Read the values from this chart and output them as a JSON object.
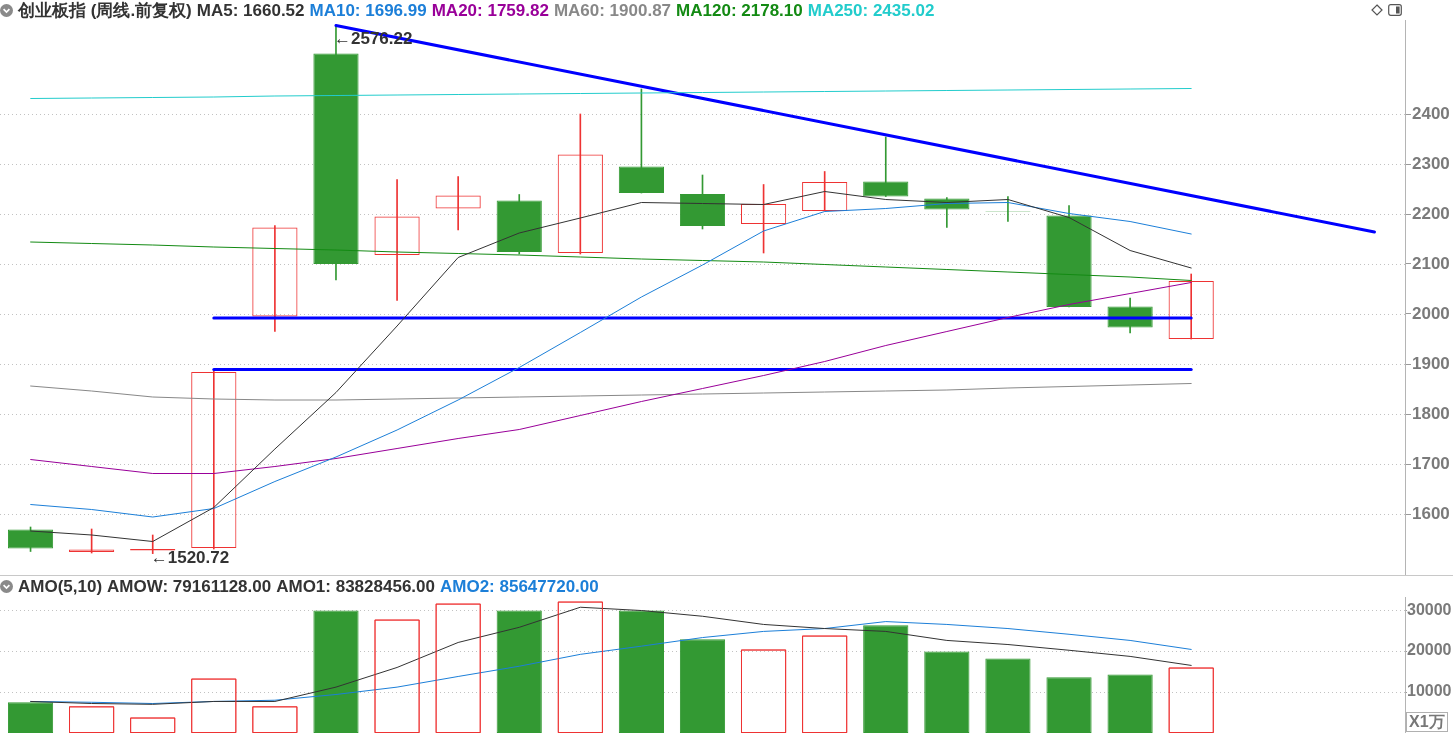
{
  "chart_data": [
    {
      "type": "candlestick",
      "title": "创业板指 (周线.前复权)",
      "categories": [
        null,
        null,
        null,
        null,
        null,
        null,
        null,
        null,
        null,
        null,
        null,
        null,
        null,
        null,
        null,
        null,
        null,
        null,
        null,
        null,
        null,
        null,
        null
      ],
      "ohlc": [
        [
          1569,
          1574,
          1525,
          1531
        ],
        [
          1524,
          1570,
          1522,
          1529
        ],
        [
          1527,
          1558,
          1520.72,
          1530
        ],
        [
          1532,
          1886,
          1530,
          1884
        ],
        [
          1995,
          2177,
          1965,
          2173
        ],
        [
          2521,
          2576.22,
          2068,
          2100
        ],
        [
          2118,
          2269,
          2027,
          2195
        ],
        [
          2211,
          2275,
          2168,
          2237
        ],
        [
          2227,
          2239,
          2120,
          2124
        ],
        [
          2122,
          2400,
          2120,
          2319
        ],
        [
          2295,
          2450,
          2242,
          2242
        ],
        [
          2240,
          2278,
          2170,
          2176
        ],
        [
          2180,
          2259,
          2122,
          2220
        ],
        [
          2206,
          2285,
          2206,
          2264
        ],
        [
          2265,
          2354,
          2235,
          2235
        ],
        [
          2231,
          2233,
          2173,
          2209
        ],
        [
          2205,
          2235,
          2185,
          2204
        ],
        [
          2197,
          2217,
          2014,
          2014
        ],
        [
          2015,
          2032,
          1962,
          1973
        ],
        [
          1950,
          2080,
          1950,
          2066
        ],
        null,
        null,
        null
      ],
      "colors": [
        "#339933",
        "#ee3333",
        "#ee3333",
        "#ee3333",
        "#ee3333",
        "#339933",
        "#ee3333",
        "#ee3333",
        "#339933",
        "#ee3333",
        "#339933",
        "#339933",
        "#ee3333",
        "#ee3333",
        "#339933",
        "#339933",
        "#339933",
        "#339933",
        "#339933",
        "#ee3333",
        null,
        null,
        null
      ],
      "series": [
        {
          "name": "MA5: 1660.52",
          "type": "line",
          "color": "#333333",
          "values": [
            1566,
            1558,
            1545,
            1613,
            1730,
            1843,
            1976,
            2113,
            2162,
            2192,
            2223,
            2221,
            2219,
            2245,
            2229,
            2223,
            2229,
            2193,
            2127,
            2092,
            null,
            null,
            null
          ]
        },
        {
          "name": "MA10: 1696.99",
          "type": "line",
          "color": "#1c7fd8",
          "values": [
            1619,
            1609,
            1594,
            1611,
            1665,
            1714,
            1768,
            1828,
            1893,
            1963,
            2034,
            2098,
            2166,
            2205,
            2211,
            2221,
            2223,
            2201,
            2185,
            2160,
            null,
            null,
            null
          ]
        },
        {
          "name": "MA20: 1759.82",
          "type": "line",
          "color": "#990099",
          "values": [
            1709,
            1695,
            1681,
            1681,
            1695,
            1711,
            1731,
            1751,
            1769,
            1797,
            1825,
            1851,
            1877,
            1905,
            1937,
            1965,
            1993,
            2019,
            2041,
            2063,
            null,
            null,
            null
          ]
        },
        {
          "name": "MA60: 1900.87",
          "type": "line",
          "color": "#888888",
          "values": [
            1856,
            1846,
            1834,
            1830,
            1828,
            1828,
            1830,
            1832,
            1834,
            1836,
            1838,
            1840,
            1842,
            1844,
            1846,
            1848,
            1852,
            1855,
            1858,
            1861,
            null,
            null,
            null
          ]
        },
        {
          "name": "MA120: 2178.10",
          "type": "line",
          "color": "#138a13",
          "values": [
            2144,
            2141,
            2138,
            2134,
            2131,
            2128,
            2124,
            2121,
            2118,
            2114,
            2110,
            2107,
            2104,
            2099,
            2094,
            2089,
            2084,
            2079,
            2074,
            2067,
            null,
            null,
            null
          ]
        },
        {
          "name": "MA250: 2435.02",
          "type": "line",
          "color": "#22cccc",
          "values": [
            2431,
            2432,
            2433,
            2434,
            2436,
            2437,
            2438,
            2439,
            2440,
            2441,
            2442,
            2443,
            2444,
            2445,
            2446,
            2447,
            2448,
            2449,
            2450,
            2451,
            null,
            null,
            null
          ]
        },
        {
          "type": "line",
          "color": "#0000ff",
          "values": [
            null,
            null,
            null,
            null,
            null,
            2577,
            null,
            null,
            null,
            null,
            null,
            null,
            null,
            null,
            null,
            null,
            null,
            null,
            null,
            null,
            null,
            null,
            2164
          ]
        },
        {
          "type": "line",
          "color": "#0000ff",
          "values": [
            null,
            null,
            null,
            1992,
            1992,
            1992,
            1992,
            1992,
            1992,
            1992,
            1992,
            1992,
            1992,
            1992,
            1992,
            1992,
            1992,
            1992,
            1992,
            1992,
            null,
            null,
            null
          ]
        },
        {
          "type": "line",
          "color": "#0000ff",
          "values": [
            null,
            null,
            null,
            1889,
            1889,
            1889,
            1889,
            1889,
            1889,
            1889,
            1889,
            1889,
            1889,
            1889,
            1889,
            1889,
            1889,
            1889,
            1889,
            1889,
            null,
            null,
            null
          ]
        }
      ],
      "annotations": [
        "←2576.22",
        "←1520.72"
      ],
      "ylim": [
        1478,
        2588
      ],
      "yticks": [
        1600,
        1700,
        1800,
        1900,
        2000,
        2100,
        2200,
        2300,
        2400
      ],
      "grid": "y",
      "legend": "top left",
      "marker": "none",
      "tick_labels": "y"
    },
    {
      "type": "bar",
      "title": "AMO(5,10)",
      "subtitle": "AMOW: 79161128.00",
      "ylabel": "X1万",
      "categories": [
        null,
        null,
        null,
        null,
        null,
        null,
        null,
        null,
        null,
        null,
        null,
        null,
        null,
        null,
        null,
        null,
        null,
        null,
        null,
        null,
        null,
        null,
        null
      ],
      "series": [
        {
          "type": "bar",
          "colors": [
            "#339933",
            "#ee3333",
            "#ee3333",
            "#ee3333",
            "#ee3333",
            "#339933",
            "#ee3333",
            "#ee3333",
            "#339933",
            "#ee3333",
            "#339933",
            "#339933",
            "#ee3333",
            "#ee3333",
            "#339933",
            "#339933",
            "#339933",
            "#339933",
            "#339933",
            "#ee3333",
            null,
            null,
            null
          ],
          "values": [
            7500,
            6500,
            3800,
            13300,
            6500,
            29900,
            27700,
            31600,
            29900,
            32100,
            29900,
            22900,
            20400,
            23800,
            26300,
            19900,
            18200,
            13600,
            14300,
            16000,
            null,
            null,
            null
          ]
        },
        {
          "name": "AMO1: 83828456.00",
          "type": "line",
          "color": "#333333",
          "values": [
            7700,
            7200,
            7000,
            7700,
            7700,
            11200,
            16000,
            22100,
            25800,
            30700,
            29900,
            28500,
            26500,
            25500,
            24800,
            22600,
            21600,
            20200,
            18700,
            16500,
            null,
            null,
            null
          ]
        },
        {
          "name": "AMO2: 85647720.00",
          "type": "line",
          "color": "#1c7fd8",
          "values": [
            7700,
            7500,
            7200,
            7700,
            8000,
            9400,
            11200,
            13800,
            16300,
            19200,
            21200,
            23300,
            24800,
            25500,
            27200,
            26500,
            25500,
            24100,
            22600,
            20400,
            null,
            null,
            null
          ]
        }
      ],
      "ylim": [
        0,
        33200
      ],
      "yticks": [
        10000,
        20000,
        30000
      ],
      "grid": "y",
      "legend": "top left",
      "marker": "none",
      "tick_labels": "y"
    }
  ]
}
